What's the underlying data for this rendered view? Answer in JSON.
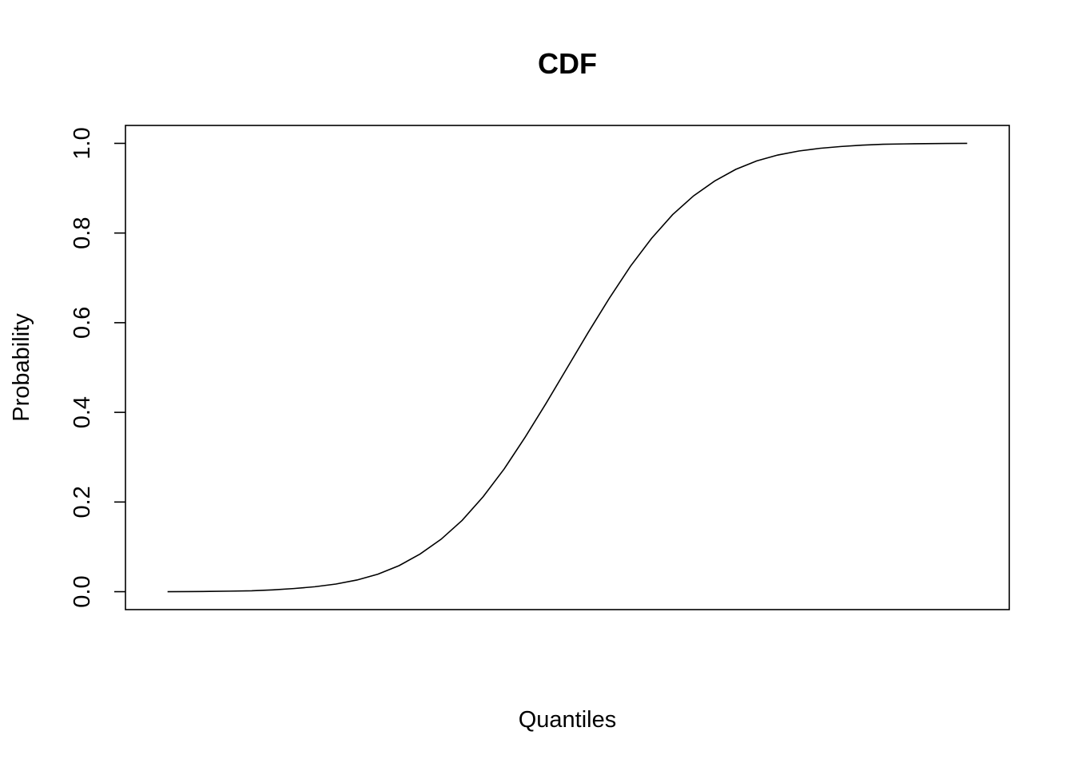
{
  "colors": {
    "background": "#ffffff",
    "line": "#000000",
    "axis": "#000000"
  },
  "chart_data": {
    "type": "line",
    "title": "CDF",
    "xlabel": "Quantiles",
    "ylabel": "Probability",
    "x_ticks_shown": false,
    "grid": false,
    "legend": "none",
    "xlim": [
      -4.2,
      4.2
    ],
    "ylim": [
      -0.04,
      1.04
    ],
    "y_ticks": [
      "0.0",
      "0.2",
      "0.4",
      "0.6",
      "0.8",
      "1.0"
    ],
    "y_tick_values": [
      0.0,
      0.2,
      0.4,
      0.6,
      0.8,
      1.0
    ],
    "series": [
      {
        "x": [
          -3.8,
          -3.6,
          -3.4,
          -3.2,
          -3.0,
          -2.8,
          -2.6,
          -2.4,
          -2.2,
          -2.0,
          -1.8,
          -1.6,
          -1.4,
          -1.2,
          -1.0,
          -0.8,
          -0.6,
          -0.4,
          -0.2,
          0.0,
          0.2,
          0.4,
          0.6,
          0.8,
          1.0,
          1.2,
          1.4,
          1.6,
          1.8,
          2.0,
          2.2,
          2.4,
          2.6,
          2.8,
          3.0,
          3.2,
          3.4,
          3.6,
          3.8
        ],
        "y": [
          0.0,
          0.0002,
          0.0006,
          0.0012,
          0.002,
          0.004,
          0.007,
          0.011,
          0.017,
          0.026,
          0.039,
          0.058,
          0.084,
          0.117,
          0.159,
          0.212,
          0.274,
          0.345,
          0.421,
          0.5,
          0.579,
          0.655,
          0.726,
          0.788,
          0.841,
          0.883,
          0.916,
          0.942,
          0.961,
          0.974,
          0.983,
          0.989,
          0.993,
          0.996,
          0.998,
          0.9988,
          0.9994,
          0.9998,
          1.0
        ]
      }
    ]
  }
}
